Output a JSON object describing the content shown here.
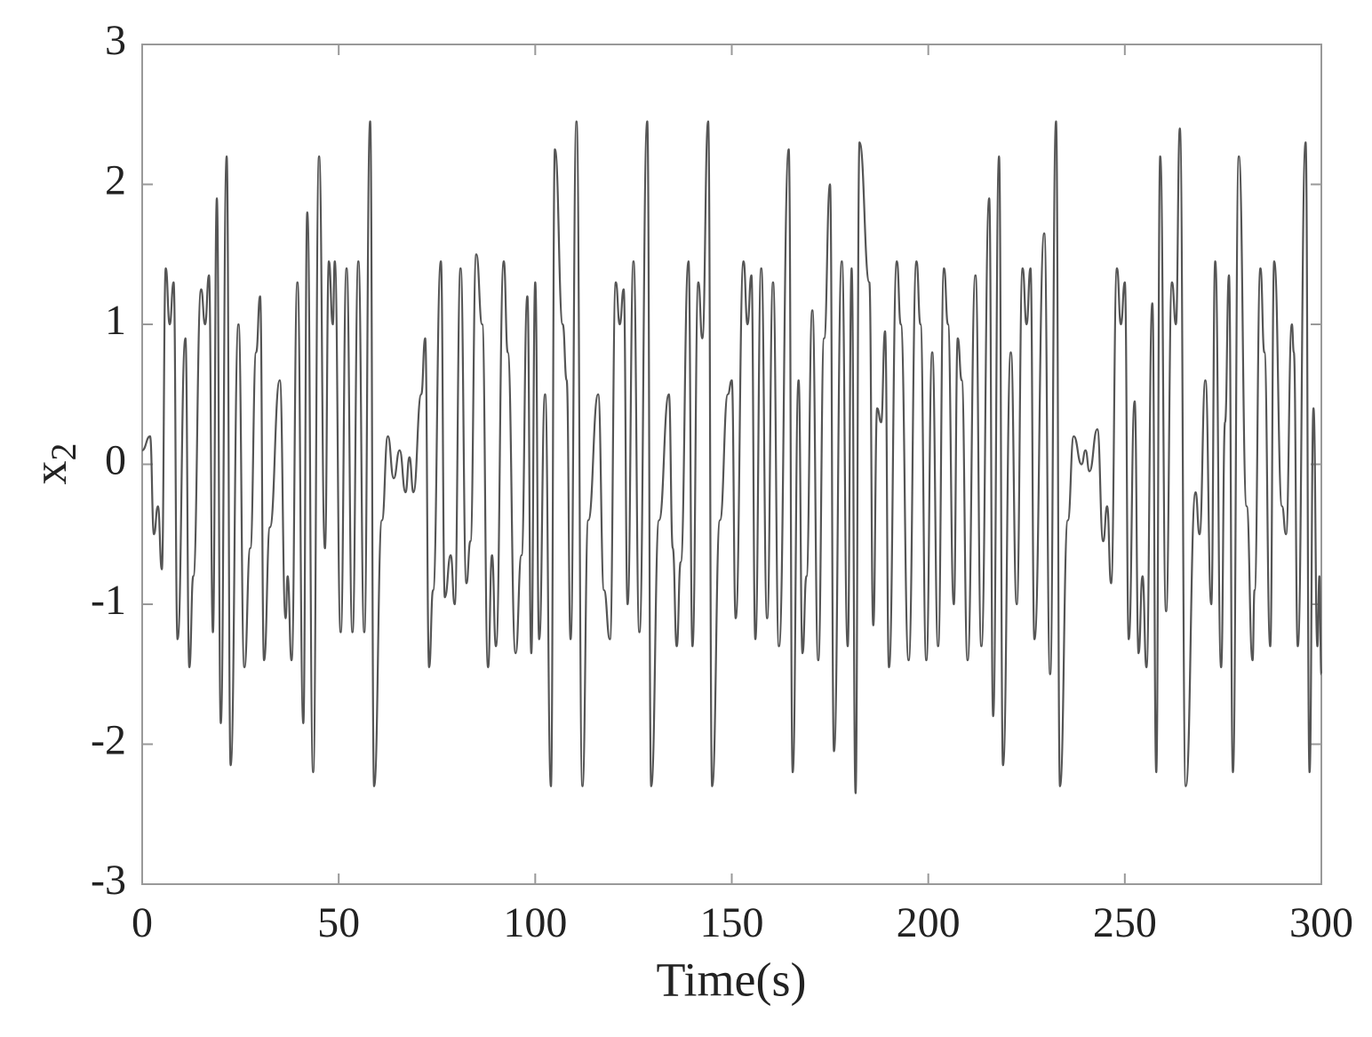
{
  "chart_data": {
    "type": "line",
    "xlabel": "Time(s)",
    "ylabel": {
      "base": "x",
      "sub": "2"
    },
    "xlim": [
      0,
      300
    ],
    "xticks": [
      0,
      50,
      100,
      150,
      200,
      250,
      300
    ],
    "ylim": [
      -3,
      3
    ],
    "yticks": [
      -3,
      -2,
      -1,
      0,
      1,
      2,
      3
    ],
    "series": [
      {
        "color": "#555555",
        "x": [
          0,
          2,
          3,
          4,
          5,
          6,
          7,
          8,
          9,
          11,
          12,
          13,
          15,
          16,
          17,
          18,
          19,
          20,
          21.5,
          22.5,
          24.5,
          26,
          27.5,
          29,
          30,
          31,
          32.5,
          35,
          36.5,
          37,
          38,
          39.5,
          41,
          42,
          43.5,
          45,
          46.5,
          47.5,
          48.5,
          49,
          50.5,
          52,
          53.5,
          55,
          56.5,
          58,
          59,
          61,
          62.5,
          64,
          65.5,
          67,
          68,
          69,
          71,
          72,
          73,
          74,
          76,
          77,
          78.5,
          79.5,
          81,
          82.5,
          83.5,
          85,
          86.5,
          88,
          89,
          90,
          92,
          93,
          95,
          96.5,
          98,
          99,
          100,
          101,
          102.5,
          104,
          105,
          107,
          108,
          109,
          110.5,
          112,
          113.5,
          116,
          117.5,
          119,
          120.5,
          121.5,
          122.5,
          123.5,
          125,
          126.5,
          128.5,
          129.5,
          131.5,
          134,
          135,
          136,
          137,
          139,
          140,
          141.5,
          142.5,
          144,
          145,
          147,
          149,
          150,
          151,
          153,
          154,
          155,
          156,
          157.5,
          159,
          160.5,
          162,
          164.5,
          165.5,
          167,
          168,
          169,
          170.5,
          172,
          173.5,
          175,
          176,
          178,
          179.5,
          180.5,
          181.5,
          182.5,
          185,
          186,
          187,
          188,
          189,
          190,
          192,
          193,
          195,
          197,
          198,
          199.5,
          201,
          202.5,
          204,
          205,
          206.5,
          207.5,
          208.5,
          210,
          212,
          213.5,
          215.5,
          216.5,
          218,
          219,
          221,
          222.5,
          224,
          225,
          226,
          227,
          229.5,
          231,
          232.5,
          233.5,
          235.5,
          237,
          239,
          240,
          241,
          243,
          244.5,
          245.5,
          246.5,
          248,
          249,
          250,
          251,
          252.5,
          253.5,
          254.5,
          255.5,
          257,
          258,
          259,
          260.5,
          262,
          263,
          264,
          265.5,
          268,
          269,
          270.5,
          272,
          273,
          274.5,
          275.5,
          276.5,
          277.5,
          279,
          281,
          282.5,
          283,
          284.5,
          285.5,
          287,
          288,
          290,
          291,
          292.5,
          293,
          294,
          296,
          297,
          298,
          299,
          299.5,
          300
        ],
        "values": [
          0.1,
          0.2,
          -0.5,
          -0.3,
          -0.75,
          1.4,
          1.0,
          1.3,
          -1.25,
          0.9,
          -1.45,
          -0.8,
          1.25,
          1.0,
          1.35,
          -1.2,
          1.9,
          -1.85,
          2.2,
          -2.15,
          1.0,
          -1.45,
          -0.6,
          0.8,
          1.2,
          -1.4,
          -0.45,
          0.6,
          -1.1,
          -0.8,
          -1.4,
          1.3,
          -1.85,
          1.8,
          -2.2,
          2.2,
          -0.6,
          1.45,
          1.0,
          1.45,
          -1.2,
          1.4,
          -1.2,
          1.45,
          -1.2,
          2.45,
          -2.3,
          -0.4,
          0.2,
          -0.1,
          0.1,
          -0.2,
          0.05,
          -0.2,
          0.5,
          0.9,
          -1.45,
          -0.9,
          1.45,
          -0.95,
          -0.65,
          -1.0,
          1.4,
          -0.85,
          -0.55,
          1.5,
          1.0,
          -1.45,
          -0.65,
          -1.3,
          1.45,
          0.8,
          -1.35,
          -0.65,
          1.2,
          -1.35,
          1.3,
          -1.25,
          0.5,
          -2.3,
          2.25,
          1.0,
          0.6,
          -1.25,
          2.45,
          -2.3,
          -0.4,
          0.5,
          -0.9,
          -1.25,
          1.3,
          1.0,
          1.25,
          -1.0,
          1.45,
          -1.2,
          2.45,
          -2.3,
          -0.4,
          0.5,
          -0.6,
          -1.3,
          -0.7,
          1.45,
          -1.3,
          1.3,
          0.9,
          2.45,
          -2.3,
          -0.4,
          0.5,
          0.6,
          -1.1,
          1.45,
          1.0,
          1.35,
          -1.25,
          1.4,
          -1.1,
          1.3,
          -1.3,
          2.25,
          -2.2,
          0.6,
          -1.35,
          -0.8,
          1.1,
          -1.4,
          0.9,
          2.0,
          -2.05,
          1.45,
          -1.3,
          1.4,
          -2.35,
          2.3,
          1.3,
          -1.15,
          0.4,
          0.3,
          0.95,
          -1.45,
          1.45,
          1.0,
          -1.4,
          1.45,
          1.0,
          -1.4,
          0.8,
          -1.3,
          1.4,
          1.0,
          -1.0,
          0.9,
          0.6,
          -1.4,
          1.35,
          -1.3,
          1.9,
          -1.8,
          2.2,
          -2.15,
          0.8,
          -1.0,
          1.4,
          1.0,
          1.4,
          -1.25,
          1.65,
          -1.5,
          2.45,
          -2.3,
          -0.4,
          0.2,
          0.0,
          0.1,
          -0.05,
          0.25,
          -0.55,
          -0.3,
          -0.85,
          1.4,
          1.0,
          1.3,
          -1.25,
          0.45,
          -1.35,
          -0.8,
          -1.45,
          1.15,
          -2.2,
          2.2,
          -1.05,
          1.3,
          1.0,
          2.4,
          -2.3,
          -0.2,
          -0.5,
          0.6,
          -1.0,
          1.45,
          -1.45,
          0.3,
          1.35,
          -2.2,
          2.2,
          -0.3,
          -1.4,
          -0.9,
          1.4,
          0.8,
          -1.3,
          1.45,
          -0.3,
          -0.5,
          1.0,
          0.8,
          -1.3,
          2.3,
          -2.2,
          0.4,
          -1.3,
          -0.8,
          -1.5
        ]
      }
    ]
  }
}
